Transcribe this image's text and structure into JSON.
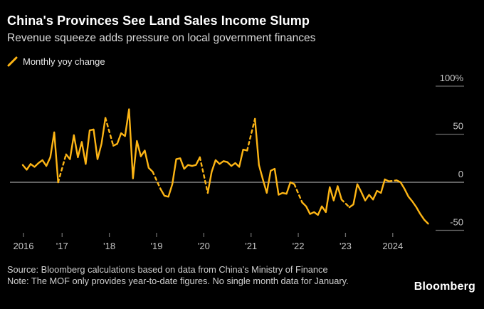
{
  "header": {
    "title": "China's Provinces See Land Sales Income Slump",
    "subtitle": "Revenue squeeze adds pressure on local government finances"
  },
  "legend": {
    "label": "Monthly yoy change"
  },
  "footer": {
    "source": "Source: Bloomberg calculations based on data from China's Ministry of Finance",
    "note": "Note: The MOF only provides year-to-date figures. No single month data for January.",
    "brand": "Bloomberg"
  },
  "colors": {
    "background": "#000000",
    "accent_line": "#fdb515",
    "title_text": "#ffffff",
    "subtitle_text": "#d9d9d9",
    "axis_text": "#c6c6c6",
    "gridline": "#9d9d9d"
  },
  "chart_data": {
    "type": "line",
    "title": "China's Provinces See Land Sales Income Slump",
    "subtitle": "Revenue squeeze adds pressure on local government finances",
    "ylabel": "Monthly yoy change (%)",
    "xlabel": "",
    "grid": "zero-line only",
    "legend_position": "top-left",
    "y_axis": {
      "unit": "%",
      "range": [
        -55,
        105
      ],
      "ticks": [
        {
          "value": 100,
          "label": "100%"
        },
        {
          "value": 50,
          "label": "50"
        },
        {
          "value": 0,
          "label": "0"
        },
        {
          "value": -50,
          "label": "-50"
        }
      ]
    },
    "x_axis": {
      "range_months": [
        "2016-03",
        "2024-10"
      ],
      "ticks": [
        {
          "year": 2016,
          "label": "2016"
        },
        {
          "year": 2017,
          "label": "'17"
        },
        {
          "year": 2018,
          "label": "'18"
        },
        {
          "year": 2019,
          "label": "'19"
        },
        {
          "year": 2020,
          "label": "'20"
        },
        {
          "year": 2021,
          "label": "'21"
        },
        {
          "year": 2022,
          "label": "'22"
        },
        {
          "year": 2023,
          "label": "'23"
        },
        {
          "year": 2024,
          "label": "2024"
        }
      ]
    },
    "gaps": {
      "january_missing": true,
      "gap_style": "dashed"
    },
    "series": [
      {
        "name": "Monthly yoy change",
        "color": "#fdb515",
        "points": [
          [
            "2016-03",
            18
          ],
          [
            "2016-04",
            13
          ],
          [
            "2016-05",
            19
          ],
          [
            "2016-06",
            16
          ],
          [
            "2016-07",
            20
          ],
          [
            "2016-08",
            23
          ],
          [
            "2016-09",
            17
          ],
          [
            "2016-10",
            26
          ],
          [
            "2016-11",
            52
          ],
          [
            "2016-12",
            0
          ],
          [
            "2017-02",
            29
          ],
          [
            "2017-03",
            24
          ],
          [
            "2017-04",
            49
          ],
          [
            "2017-05",
            26
          ],
          [
            "2017-06",
            42
          ],
          [
            "2017-07",
            19
          ],
          [
            "2017-08",
            54
          ],
          [
            "2017-09",
            55
          ],
          [
            "2017-10",
            24
          ],
          [
            "2017-11",
            40
          ],
          [
            "2017-12",
            67
          ],
          [
            "2018-02",
            38
          ],
          [
            "2018-03",
            40
          ],
          [
            "2018-04",
            51
          ],
          [
            "2018-05",
            48
          ],
          [
            "2018-06",
            76
          ],
          [
            "2018-07",
            4
          ],
          [
            "2018-08",
            43
          ],
          [
            "2018-09",
            27
          ],
          [
            "2018-10",
            33
          ],
          [
            "2018-11",
            15
          ],
          [
            "2018-12",
            11
          ],
          [
            "2019-02",
            -7
          ],
          [
            "2019-03",
            -14
          ],
          [
            "2019-04",
            -15
          ],
          [
            "2019-05",
            -2
          ],
          [
            "2019-06",
            24
          ],
          [
            "2019-07",
            25
          ],
          [
            "2019-08",
            14
          ],
          [
            "2019-09",
            18
          ],
          [
            "2019-10",
            17
          ],
          [
            "2019-11",
            18
          ],
          [
            "2019-12",
            26
          ],
          [
            "2020-02",
            -11
          ],
          [
            "2020-03",
            11
          ],
          [
            "2020-04",
            23
          ],
          [
            "2020-05",
            19
          ],
          [
            "2020-06",
            22
          ],
          [
            "2020-07",
            21
          ],
          [
            "2020-08",
            17
          ],
          [
            "2020-09",
            20
          ],
          [
            "2020-10",
            16
          ],
          [
            "2020-11",
            34
          ],
          [
            "2020-12",
            33
          ],
          [
            "2021-02",
            66
          ],
          [
            "2021-03",
            18
          ],
          [
            "2021-04",
            3
          ],
          [
            "2021-05",
            -11
          ],
          [
            "2021-06",
            12
          ],
          [
            "2021-07",
            14
          ],
          [
            "2021-08",
            -13
          ],
          [
            "2021-09",
            -11
          ],
          [
            "2021-10",
            -12
          ],
          [
            "2021-11",
            0
          ],
          [
            "2021-12",
            -2
          ],
          [
            "2022-02",
            -21
          ],
          [
            "2022-03",
            -25
          ],
          [
            "2022-04",
            -33
          ],
          [
            "2022-05",
            -31
          ],
          [
            "2022-06",
            -34
          ],
          [
            "2022-07",
            -25
          ],
          [
            "2022-08",
            -31
          ],
          [
            "2022-09",
            -5
          ],
          [
            "2022-10",
            -19
          ],
          [
            "2022-11",
            -4
          ],
          [
            "2022-12",
            -18
          ],
          [
            "2023-02",
            -26
          ],
          [
            "2023-03",
            -23
          ],
          [
            "2023-04",
            -2
          ],
          [
            "2023-05",
            -10
          ],
          [
            "2023-06",
            -19
          ],
          [
            "2023-07",
            -13
          ],
          [
            "2023-08",
            -18
          ],
          [
            "2023-09",
            -9
          ],
          [
            "2023-10",
            -11
          ],
          [
            "2023-11",
            3
          ],
          [
            "2023-12",
            1
          ],
          [
            "2024-02",
            2
          ],
          [
            "2024-03",
            0
          ],
          [
            "2024-04",
            -7
          ],
          [
            "2024-05",
            -15
          ],
          [
            "2024-06",
            -20
          ],
          [
            "2024-07",
            -26
          ],
          [
            "2024-08",
            -33
          ],
          [
            "2024-09",
            -39
          ],
          [
            "2024-10",
            -43
          ]
        ]
      }
    ]
  }
}
